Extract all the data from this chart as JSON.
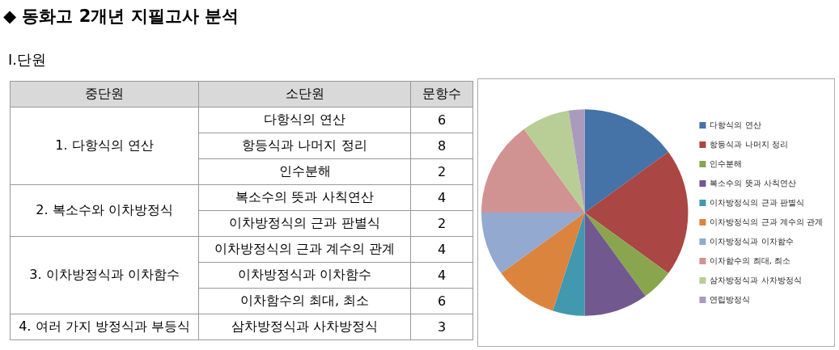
{
  "chart_data": [
    {
      "type": "other",
      "title": "◆ 동화고 2개년 지필고사 분석",
      "subtitle": "Ⅰ.단원",
      "annotations": [
        "중단원",
        "소단원",
        "문항수",
        "1. 다항식의 연산",
        "다항식의 연산",
        "6",
        "항등식과 나머지 정리",
        "8",
        "인수분해",
        "2",
        "2. 복소수와 이차방정식",
        "복소수의 뜻과 사칙연산",
        "4",
        "이차방정식의 근과 판별식",
        "2",
        "3. 이차방정식과 이차함수",
        "이차방정식의 근과 계수의 관계",
        "4",
        "이차방정식과 이차함수",
        "4",
        "이차함수의 최대, 최소",
        "6",
        "4. 여러 가지 방정식과 부등식",
        "삼차방정식과 사차방정식",
        "3"
      ]
    },
    {
      "type": "pie",
      "categories": [
        "다항식의 연산",
        "항등식과 나머지 정리",
        "인수분해",
        "복소수의 뜻과 사칙연산",
        "이차방정식의 근과 판별식",
        "이차방정식의 근과 계수의 관계",
        "이차방정식과 이차함수",
        "이차함수의 최대, 최소",
        "삼차방정식과 사차방정식",
        "연립방정식"
      ],
      "values": [
        15,
        20,
        5,
        10,
        5,
        10,
        10,
        15,
        7.5,
        2.5
      ],
      "colors": [
        "#4572a7",
        "#aa4643",
        "#89a54e",
        "#71588f",
        "#4198af",
        "#db843d",
        "#93a9cf",
        "#d19392",
        "#b9cd96",
        "#a99bbd"
      ],
      "legend": "right"
    }
  ]
}
